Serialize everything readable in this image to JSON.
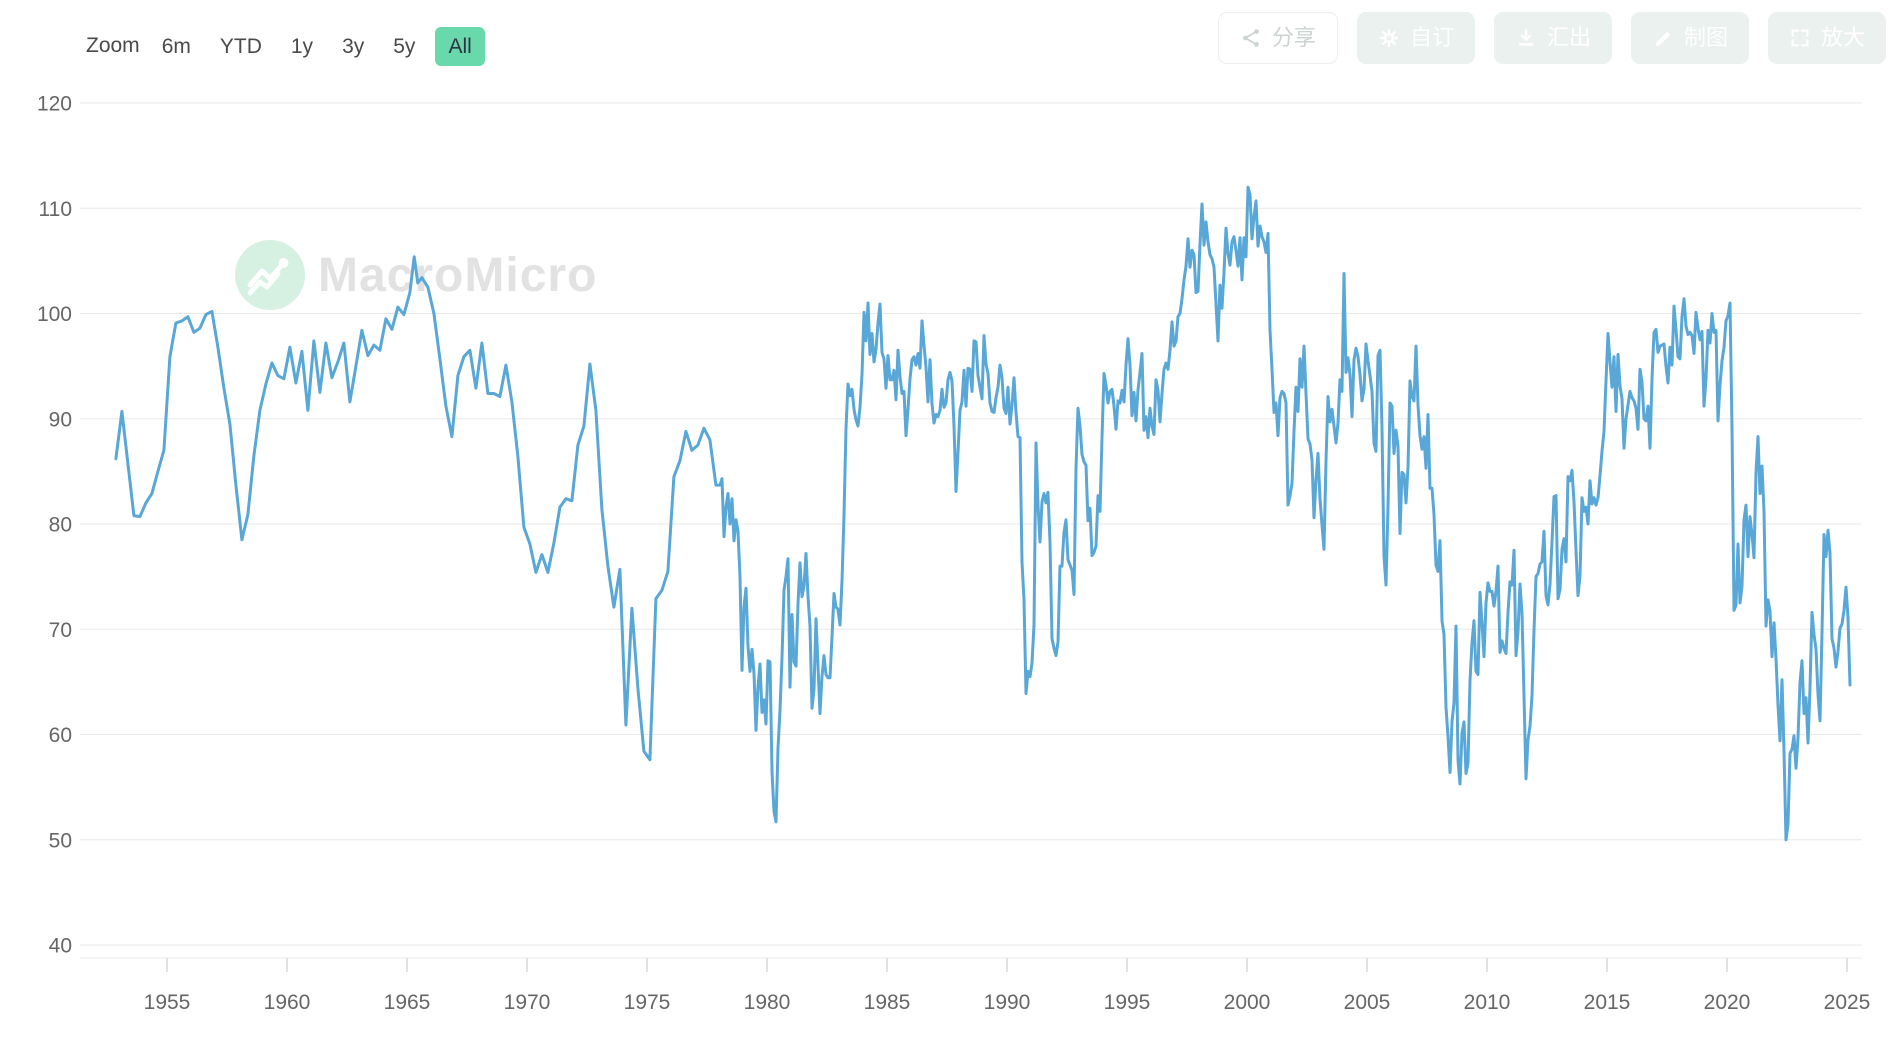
{
  "toolbar": {
    "zoom_label": "Zoom",
    "ranges": [
      "6m",
      "YTD",
      "1y",
      "3y",
      "5y",
      "All"
    ],
    "selected_range": "All",
    "actions": [
      {
        "label": "分享",
        "icon": "share-icon"
      },
      {
        "label": "自订",
        "icon": "gear-icon"
      },
      {
        "label": "汇出",
        "icon": "download-icon"
      },
      {
        "label": "制图",
        "icon": "pencil-icon"
      },
      {
        "label": "放大",
        "icon": "expand-icon"
      }
    ]
  },
  "watermark": {
    "text": "MacroMicro"
  },
  "colors": {
    "line": "#58A7D7",
    "selected_range_bg": "#69D8AA",
    "gridline": "#E8E8E8",
    "tick": "#D9D9D9",
    "axis_label": "#666666",
    "watermark_circle": "#D6F0E2",
    "watermark_text": "#E2E2E2",
    "action_button_bg": "#EBF1EE"
  },
  "chart_data": {
    "type": "line",
    "title": "",
    "legend": "none",
    "grid": "horizontal",
    "line_color": "#58A7D7",
    "x_ticks": [
      1955,
      1960,
      1965,
      1970,
      1975,
      1980,
      1985,
      1990,
      1995,
      2000,
      2005,
      2010,
      2015,
      2020,
      2025
    ],
    "y_ticks": [
      40,
      50,
      60,
      70,
      80,
      90,
      100,
      110,
      120
    ],
    "ylim": [
      40,
      120
    ],
    "xlim": [
      1952.5,
      2026.1
    ],
    "pre_1978_quarterly_points": [
      [
        1952.87,
        86.2
      ],
      [
        1953.12,
        90.7
      ],
      [
        1953.62,
        80.8
      ],
      [
        1953.87,
        80.7
      ],
      [
        1954.12,
        82.0
      ],
      [
        1954.37,
        82.9
      ],
      [
        1954.62,
        85.0
      ],
      [
        1954.87,
        87.0
      ],
      [
        1955.12,
        95.9
      ],
      [
        1955.37,
        99.1
      ],
      [
        1955.62,
        99.3
      ],
      [
        1955.87,
        99.7
      ],
      [
        1956.12,
        98.2
      ],
      [
        1956.37,
        98.6
      ],
      [
        1956.62,
        99.9
      ],
      [
        1956.87,
        100.2
      ],
      [
        1957.12,
        96.8
      ],
      [
        1957.37,
        92.9
      ],
      [
        1957.62,
        89.5
      ],
      [
        1957.87,
        83.7
      ],
      [
        1958.12,
        78.5
      ],
      [
        1958.37,
        80.9
      ],
      [
        1958.62,
        86.5
      ],
      [
        1958.87,
        90.8
      ],
      [
        1959.12,
        93.3
      ],
      [
        1959.37,
        95.3
      ],
      [
        1959.62,
        94.1
      ],
      [
        1959.87,
        93.8
      ],
      [
        1960.12,
        96.8
      ],
      [
        1960.37,
        93.4
      ],
      [
        1960.62,
        96.4
      ],
      [
        1960.87,
        90.8
      ],
      [
        1961.12,
        97.4
      ],
      [
        1961.37,
        92.5
      ],
      [
        1961.62,
        97.2
      ],
      [
        1961.87,
        93.9
      ],
      [
        1962.12,
        95.4
      ],
      [
        1962.37,
        97.2
      ],
      [
        1962.62,
        91.6
      ],
      [
        1962.87,
        95.0
      ],
      [
        1963.12,
        98.4
      ],
      [
        1963.37,
        96.0
      ],
      [
        1963.62,
        97.0
      ],
      [
        1963.87,
        96.5
      ],
      [
        1964.12,
        99.5
      ],
      [
        1964.37,
        98.5
      ],
      [
        1964.62,
        100.6
      ],
      [
        1964.87,
        99.9
      ],
      [
        1965.12,
        102.0
      ],
      [
        1965.3,
        105.4
      ],
      [
        1965.45,
        102.9
      ],
      [
        1965.62,
        103.4
      ],
      [
        1965.87,
        102.5
      ],
      [
        1966.12,
        100.0
      ],
      [
        1966.37,
        95.7
      ],
      [
        1966.62,
        91.2
      ],
      [
        1966.87,
        88.3
      ],
      [
        1967.12,
        94.1
      ],
      [
        1967.37,
        95.9
      ],
      [
        1967.62,
        96.5
      ],
      [
        1967.87,
        92.9
      ],
      [
        1968.12,
        97.2
      ],
      [
        1968.37,
        92.4
      ],
      [
        1968.62,
        92.4
      ],
      [
        1968.87,
        92.1
      ],
      [
        1969.12,
        95.1
      ],
      [
        1969.37,
        91.6
      ],
      [
        1969.62,
        86.4
      ],
      [
        1969.87,
        79.7
      ],
      [
        1970.12,
        78.1
      ],
      [
        1970.37,
        75.4
      ],
      [
        1970.62,
        77.1
      ],
      [
        1970.87,
        75.4
      ],
      [
        1971.12,
        78.2
      ],
      [
        1971.37,
        81.6
      ],
      [
        1971.62,
        82.4
      ],
      [
        1971.87,
        82.2
      ],
      [
        1972.12,
        87.5
      ],
      [
        1972.37,
        89.3
      ],
      [
        1972.62,
        95.2
      ],
      [
        1972.87,
        90.8
      ],
      [
        1973.12,
        81.4
      ],
      [
        1973.37,
        76.0
      ],
      [
        1973.62,
        72.1
      ],
      [
        1973.87,
        75.7
      ],
      [
        1974.12,
        60.9
      ],
      [
        1974.37,
        72.0
      ],
      [
        1974.62,
        64.4
      ],
      [
        1974.87,
        58.4
      ],
      [
        1975.12,
        57.6
      ],
      [
        1975.37,
        72.9
      ],
      [
        1975.62,
        73.7
      ],
      [
        1975.87,
        75.5
      ],
      [
        1976.12,
        84.5
      ],
      [
        1976.37,
        86.0
      ],
      [
        1976.62,
        88.8
      ],
      [
        1976.87,
        87.0
      ],
      [
        1977.12,
        87.5
      ],
      [
        1977.37,
        89.1
      ],
      [
        1977.62,
        88.0
      ],
      [
        1977.87,
        83.7
      ]
    ],
    "monthly": {
      "start_year": 1978,
      "values": [
        [
          83.7,
          84.3,
          78.8,
          81.6,
          82.9,
          80.0,
          82.4,
          78.4,
          80.4,
          79.3,
          75.0,
          66.1
        ],
        [
          72.1,
          73.9,
          68.4,
          66.0,
          68.1,
          65.8,
          60.4,
          64.5,
          66.7,
          62.1,
          63.3,
          61.0
        ],
        [
          67.0,
          66.9,
          56.5,
          52.7,
          51.7,
          58.7,
          62.3,
          67.3,
          73.7,
          75.0,
          76.7,
          64.5
        ],
        [
          71.4,
          66.9,
          66.5,
          72.4,
          76.3,
          73.1,
          74.1,
          77.2,
          73.1,
          70.3,
          62.5,
          64.3
        ],
        [
          71.0,
          66.5,
          62.0,
          65.5,
          67.5,
          65.7,
          65.4,
          65.4,
          69.3,
          73.4,
          72.1,
          71.9
        ],
        [
          70.4,
          74.6,
          80.8,
          89.1,
          93.3,
          92.2,
          92.8,
          90.9,
          89.9,
          89.3,
          91.1,
          94.2
        ],
        [
          100.1,
          97.4,
          101.0,
          96.1,
          98.1,
          95.4,
          96.6,
          99.1,
          100.9,
          96.3,
          95.7,
          92.9
        ],
        [
          96.0,
          93.7,
          93.7,
          94.6,
          91.8,
          96.5,
          94.0,
          92.4,
          92.6,
          88.4,
          90.9,
          93.8
        ],
        [
          95.6,
          95.9,
          95.1,
          96.2,
          94.8,
          99.3,
          97.0,
          94.9,
          91.6,
          95.6,
          91.4,
          89.6
        ],
        [
          90.4,
          90.2,
          90.8,
          92.8,
          91.1,
          91.5,
          93.7,
          94.4,
          93.6,
          89.3,
          83.1,
          86.8
        ],
        [
          90.8,
          91.6,
          94.6,
          91.2,
          94.8,
          94.7,
          92.6,
          97.4,
          97.3,
          94.1,
          93.0,
          91.9
        ],
        [
          97.9,
          95.2,
          94.3,
          91.5,
          90.7,
          90.6,
          92.0,
          93.0,
          95.1,
          93.9,
          91.0,
          90.5
        ],
        [
          93.0,
          89.5,
          91.3,
          93.9,
          90.6,
          88.3,
          88.2,
          76.4,
          72.8,
          63.9,
          66.0,
          65.5
        ],
        [
          66.8,
          70.4,
          87.7,
          81.8,
          78.3,
          82.1,
          82.9,
          82.0,
          83.0,
          78.3,
          69.1,
          68.2
        ],
        [
          67.5,
          68.8,
          76.0,
          76.0,
          79.2,
          80.4,
          76.6,
          76.1,
          75.6,
          73.3,
          85.3,
          91.0
        ],
        [
          89.3,
          86.6,
          85.9,
          85.6,
          80.3,
          81.5,
          77.0,
          77.3,
          77.9,
          82.7,
          81.2,
          88.2
        ],
        [
          94.3,
          93.2,
          91.5,
          92.6,
          92.8,
          91.2,
          89.0,
          91.7,
          91.5,
          92.7,
          91.6,
          95.1
        ],
        [
          97.6,
          95.1,
          90.3,
          92.5,
          89.8,
          92.7,
          94.4,
          96.2,
          88.9,
          90.2,
          88.2,
          91.0
        ],
        [
          89.3,
          88.5,
          93.7,
          92.7,
          89.7,
          92.4,
          94.7,
          95.3,
          94.7,
          96.5,
          99.2,
          96.9
        ],
        [
          97.4,
          99.7,
          100.0,
          101.4,
          103.2,
          104.5,
          107.1,
          104.4,
          106.0,
          105.6,
          102.0,
          102.1
        ],
        [
          106.6,
          110.4,
          106.5,
          108.7,
          106.8,
          105.6,
          105.2,
          104.4,
          100.9,
          97.4,
          102.7,
          100.5
        ],
        [
          103.9,
          108.1,
          105.7,
          104.6,
          106.8,
          107.3,
          106.0,
          104.5,
          107.2,
          103.2,
          107.2,
          105.4
        ],
        [
          112.0,
          111.3,
          107.1,
          109.2,
          110.7,
          106.4,
          108.3,
          107.3,
          106.8,
          105.8,
          107.6,
          98.4
        ],
        [
          94.7,
          90.6,
          91.5,
          88.4,
          92.0,
          92.6,
          92.4,
          91.5,
          81.8,
          82.7,
          83.9,
          88.8
        ],
        [
          93.0,
          90.7,
          95.7,
          93.0,
          96.9,
          92.4,
          88.1,
          87.6,
          86.1,
          80.6,
          84.2,
          86.7
        ],
        [
          82.4,
          79.9,
          77.6,
          86.0,
          92.1,
          89.7,
          90.9,
          89.3,
          87.7,
          89.6,
          93.7,
          92.6
        ],
        [
          103.8,
          94.4,
          95.8,
          94.2,
          90.2,
          95.6,
          96.7,
          95.9,
          94.2,
          91.7,
          92.8,
          97.1
        ],
        [
          95.5,
          94.1,
          92.6,
          87.7,
          86.9,
          96.0,
          96.5,
          89.1,
          76.9,
          74.2,
          81.6,
          91.5
        ],
        [
          91.2,
          86.7,
          88.9,
          87.4,
          79.1,
          84.9,
          84.7,
          82.0,
          85.4,
          93.6,
          92.1,
          91.7
        ],
        [
          96.9,
          91.3,
          88.4,
          87.1,
          88.3,
          85.3,
          90.4,
          83.4,
          83.4,
          80.9,
          76.1,
          75.5
        ],
        [
          78.4,
          70.8,
          69.5,
          62.6,
          59.8,
          56.4,
          61.2,
          63.0,
          70.3,
          57.6,
          55.3,
          60.1
        ],
        [
          61.2,
          56.3,
          57.3,
          65.1,
          68.7,
          70.8,
          66.0,
          65.7,
          73.5,
          70.6,
          67.4,
          72.5
        ],
        [
          74.4,
          73.6,
          73.6,
          72.2,
          73.6,
          76.0,
          67.8,
          68.9,
          68.2,
          67.7,
          71.6,
          74.5
        ],
        [
          74.2,
          77.5,
          67.5,
          69.8,
          74.3,
          71.5,
          63.7,
          55.8,
          59.5,
          60.8,
          63.7,
          69.9
        ],
        [
          75.0,
          75.3,
          76.2,
          76.4,
          79.3,
          73.2,
          72.3,
          74.3,
          78.3,
          82.6,
          82.7,
          72.9
        ],
        [
          73.8,
          77.6,
          78.6,
          76.4,
          84.5,
          84.1,
          85.1,
          82.1,
          77.5,
          73.2,
          75.1,
          82.5
        ],
        [
          81.2,
          81.6,
          80.0,
          84.1,
          81.9,
          82.5,
          81.8,
          82.5,
          84.6,
          86.9,
          88.8,
          93.6
        ],
        [
          98.1,
          95.4,
          93.0,
          95.9,
          90.7,
          96.1,
          93.1,
          91.9,
          87.2,
          90.0,
          91.3,
          92.6
        ],
        [
          92.0,
          91.7,
          91.0,
          89.0,
          94.7,
          93.5,
          90.0,
          89.8,
          91.2,
          87.2,
          93.8,
          98.2
        ],
        [
          98.5,
          96.3,
          96.9,
          97.0,
          97.1,
          95.0,
          93.4,
          96.8,
          95.1,
          100.7,
          98.5,
          95.9
        ],
        [
          95.7,
          99.7,
          101.4,
          98.8,
          98.0,
          98.2,
          97.9,
          96.2,
          100.1,
          98.6,
          97.5,
          98.3
        ],
        [
          91.2,
          93.8,
          98.4,
          97.2,
          100.0,
          98.2,
          98.4,
          89.8,
          93.2,
          95.5,
          96.8,
          99.3
        ],
        [
          99.8,
          101.0,
          89.1,
          71.8,
          72.3,
          78.1,
          72.5,
          74.1,
          80.4,
          81.8,
          76.9,
          80.7
        ],
        [
          79.0,
          76.8,
          84.9,
          88.3,
          82.9,
          85.5,
          81.2,
          70.3,
          72.8,
          71.7,
          67.4,
          70.6
        ],
        [
          67.2,
          62.8,
          59.4,
          65.2,
          58.4,
          50.0,
          51.5,
          58.2,
          58.6,
          59.9,
          56.8,
          59.7
        ],
        [
          64.9,
          67.0,
          62.0,
          63.5,
          59.2,
          64.4,
          71.6,
          69.5,
          68.1,
          63.8,
          61.3,
          69.7
        ],
        [
          79.0,
          76.9,
          79.4,
          77.2,
          69.1,
          68.2,
          66.4,
          67.9,
          70.1,
          70.5,
          71.8,
          74.0
        ],
        [
          71.1,
          64.7
        ]
      ]
    }
  }
}
